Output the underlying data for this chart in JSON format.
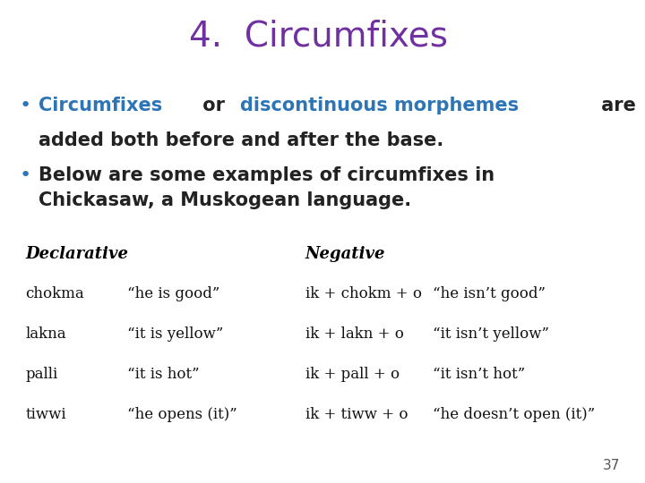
{
  "title": "4.  Circumfixes",
  "title_color": "#7030A0",
  "title_fontsize": 28,
  "bg_color": "#FFFFFF",
  "bullet_color": "#2E75B6",
  "bullet_fontsize": 15,
  "bullet2_text": "Below are some examples of circumfixes in\nChickasaw, a Muskogean language.",
  "bullet2_color": "#222222",
  "table_header_fontsize": 13,
  "table_body_fontsize": 12,
  "table_header_color": "#000000",
  "table_body_color": "#111111",
  "dec_header": "Declarative",
  "neg_header": "Negative",
  "dec_col1": [
    "chokma",
    "lakna",
    "palli",
    "tiwwi"
  ],
  "dec_col2": [
    "“he is good”",
    "“it is yellow”",
    "“it is hot”",
    "“he opens (it)”"
  ],
  "neg_col1": [
    "ik + chokm + o",
    "ik + lakn + o",
    "ik + pall + o",
    "ik + tiww + o"
  ],
  "neg_col2": [
    "“he isn’t good”",
    "“it isn’t yellow”",
    "“it isn’t hot”",
    "“he doesn’t open (it)”"
  ],
  "page_number": "37",
  "page_number_color": "#555555",
  "page_number_fontsize": 11,
  "b1_highlighted_color": "#2E75B6",
  "b1_normal_color": "#222222"
}
